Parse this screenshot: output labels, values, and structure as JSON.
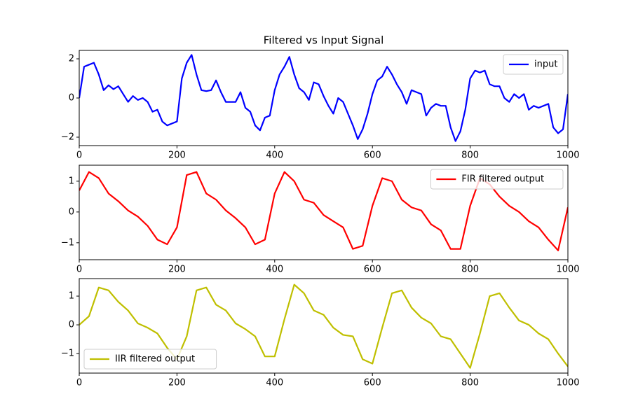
{
  "chart_data": [
    {
      "type": "line",
      "title": "Filtered vs Input Signal",
      "x": [
        0,
        10,
        20,
        30,
        40,
        50,
        60,
        70,
        80,
        90,
        100,
        110,
        120,
        130,
        140,
        150,
        160,
        170,
        180,
        190,
        200,
        210,
        220,
        230,
        240,
        250,
        260,
        270,
        280,
        290,
        300,
        310,
        320,
        330,
        340,
        350,
        360,
        370,
        380,
        390,
        400,
        410,
        420,
        430,
        440,
        450,
        460,
        470,
        480,
        490,
        500,
        510,
        520,
        530,
        540,
        550,
        560,
        570,
        580,
        590,
        600,
        610,
        620,
        630,
        640,
        650,
        660,
        670,
        680,
        690,
        700,
        710,
        720,
        730,
        740,
        750,
        760,
        770,
        780,
        790,
        800,
        810,
        820,
        830,
        840,
        850,
        860,
        870,
        880,
        890,
        900,
        910,
        920,
        930,
        940,
        950,
        960,
        970,
        980,
        990,
        1000
      ],
      "series": [
        {
          "name": "input",
          "color": "#0000ff",
          "values": [
            0,
            1.6,
            1.7,
            1.8,
            1.2,
            0.4,
            0.65,
            0.45,
            0.6,
            0.2,
            -0.2,
            0.1,
            -0.1,
            0.0,
            -0.2,
            -0.7,
            -0.6,
            -1.2,
            -1.4,
            -1.3,
            -1.2,
            1.0,
            1.8,
            2.2,
            1.2,
            0.4,
            0.35,
            0.4,
            0.9,
            0.3,
            -0.2,
            -0.2,
            -0.2,
            0.3,
            -0.5,
            -0.7,
            -1.4,
            -1.65,
            -1.0,
            -0.9,
            0.4,
            1.2,
            1.6,
            2.1,
            1.2,
            0.5,
            0.3,
            -0.1,
            0.8,
            0.7,
            0.1,
            -0.4,
            -0.8,
            0.0,
            -0.2,
            -0.8,
            -1.4,
            -2.1,
            -1.6,
            -0.8,
            0.2,
            0.9,
            1.1,
            1.6,
            1.2,
            0.7,
            0.3,
            -0.3,
            0.4,
            0.3,
            0.2,
            -0.9,
            -0.5,
            -0.3,
            -0.4,
            -0.4,
            -1.5,
            -2.2,
            -1.7,
            -0.6,
            1.0,
            1.4,
            1.3,
            1.4,
            0.7,
            0.6,
            0.6,
            0.0,
            -0.2,
            0.2,
            0.0,
            0.2,
            -0.6,
            -0.4,
            -0.5,
            -0.4,
            -0.3,
            -1.5,
            -1.8,
            -1.6,
            0.2
          ]
        }
      ],
      "xlim": [
        0,
        1000
      ],
      "xticks": [
        0,
        200,
        400,
        600,
        800,
        1000
      ],
      "ylim": [
        -2.43,
        2.43
      ],
      "yticks": [
        {
          "value": -2,
          "label": "−2"
        },
        0,
        2
      ],
      "legend": "upper right"
    },
    {
      "type": "line",
      "x": [
        0,
        20,
        40,
        60,
        80,
        100,
        120,
        140,
        160,
        180,
        200,
        220,
        240,
        260,
        280,
        300,
        320,
        340,
        360,
        380,
        400,
        420,
        440,
        460,
        480,
        500,
        520,
        540,
        560,
        580,
        600,
        620,
        640,
        660,
        680,
        700,
        720,
        740,
        760,
        780,
        800,
        820,
        840,
        860,
        880,
        900,
        920,
        940,
        960,
        980,
        1000
      ],
      "series": [
        {
          "name": "FIR filtered output",
          "color": "#ff0000",
          "values": [
            0.7,
            1.3,
            1.1,
            0.6,
            0.35,
            0.05,
            -0.15,
            -0.45,
            -0.9,
            -1.05,
            -0.5,
            1.2,
            1.3,
            0.6,
            0.4,
            0.05,
            -0.2,
            -0.5,
            -1.05,
            -0.9,
            0.6,
            1.3,
            1.0,
            0.4,
            0.3,
            -0.1,
            -0.3,
            -0.5,
            -1.2,
            -1.1,
            0.2,
            1.1,
            1.0,
            0.4,
            0.15,
            0.05,
            -0.4,
            -0.6,
            -1.2,
            -1.2,
            0.2,
            1.1,
            0.9,
            0.5,
            0.2,
            0.0,
            -0.3,
            -0.5,
            -0.9,
            -1.25,
            0.15
          ]
        }
      ],
      "xlim": [
        0,
        1000
      ],
      "xticks": [
        0,
        200,
        400,
        600,
        800,
        1000
      ],
      "ylim": [
        -1.55,
        1.52
      ],
      "yticks": [
        {
          "value": -1,
          "label": "−1"
        },
        0,
        1
      ],
      "legend": "upper right"
    },
    {
      "type": "line",
      "x": [
        0,
        20,
        40,
        60,
        80,
        100,
        120,
        140,
        160,
        180,
        200,
        220,
        240,
        260,
        280,
        300,
        320,
        340,
        360,
        380,
        400,
        420,
        440,
        460,
        480,
        500,
        520,
        540,
        560,
        580,
        600,
        620,
        640,
        660,
        680,
        700,
        720,
        740,
        760,
        780,
        800,
        820,
        840,
        860,
        880,
        900,
        920,
        940,
        960,
        980,
        1000
      ],
      "series": [
        {
          "name": "IIR filtered output",
          "color": "#bfbf00",
          "values": [
            0.0,
            0.3,
            1.3,
            1.2,
            0.8,
            0.5,
            0.05,
            -0.1,
            -0.3,
            -0.8,
            -1.2,
            -0.4,
            1.2,
            1.3,
            0.7,
            0.5,
            0.05,
            -0.15,
            -0.4,
            -1.1,
            -1.1,
            0.2,
            1.4,
            1.1,
            0.5,
            0.35,
            -0.1,
            -0.35,
            -0.4,
            -1.2,
            -1.35,
            -0.1,
            1.1,
            1.2,
            0.6,
            0.25,
            0.05,
            -0.4,
            -0.5,
            -1.0,
            -1.5,
            -0.3,
            1.0,
            1.1,
            0.6,
            0.15,
            0.0,
            -0.3,
            -0.5,
            -1.0,
            -1.45
          ]
        }
      ],
      "xlim": [
        0,
        1000
      ],
      "xticks": [
        0,
        200,
        400,
        600,
        800,
        1000
      ],
      "ylim": [
        -1.68,
        1.61
      ],
      "yticks": [
        {
          "value": -1,
          "label": "−1"
        },
        0,
        1
      ],
      "legend": "lower left"
    }
  ]
}
